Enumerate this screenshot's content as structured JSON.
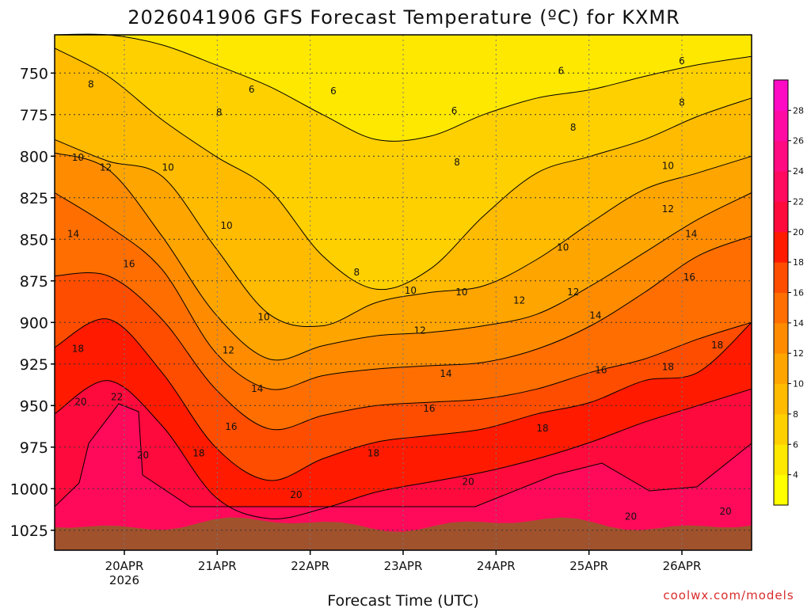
{
  "chart_data": {
    "type": "heatmap",
    "title": "2026041906 GFS Forecast Temperature (ºC) for KXMR",
    "xlabel": "Forecast Time (UTC)",
    "ylabel": "",
    "credit": "coolwx.com/models",
    "yaxis": {
      "reversed": true,
      "ylim": [
        1037,
        727
      ],
      "ticks": [
        750,
        775,
        800,
        825,
        850,
        875,
        900,
        925,
        950,
        975,
        1000,
        1025
      ]
    },
    "xaxis": {
      "ticks": [
        {
          "label": "20APR",
          "sub": "2026",
          "day": 0
        },
        {
          "label": "21APR",
          "sub": "",
          "day": 1
        },
        {
          "label": "22APR",
          "sub": "",
          "day": 2
        },
        {
          "label": "23APR",
          "sub": "",
          "day": 3
        },
        {
          "label": "24APR",
          "sub": "",
          "day": 4
        },
        {
          "label": "25APR",
          "sub": "",
          "day": 5
        },
        {
          "label": "26APR",
          "sub": "",
          "day": 6
        }
      ],
      "xlim": [
        -0.75,
        6.75
      ]
    },
    "colorbar": {
      "levels": [
        2,
        4,
        6,
        8,
        10,
        12,
        14,
        16,
        18,
        20,
        22,
        24,
        26,
        28,
        30
      ],
      "tick_labels": [
        "4",
        "6",
        "8",
        "10",
        "12",
        "14",
        "16",
        "18",
        "20",
        "22",
        "24",
        "26",
        "28"
      ],
      "colors": [
        "#ffff00",
        "#ffe800",
        "#ffd000",
        "#ffbb00",
        "#ffa500",
        "#ff8c00",
        "#ff6e00",
        "#ff4d00",
        "#ff1a00",
        "#ff0a3c",
        "#ff0a5e",
        "#ff0a80",
        "#ff0aa3",
        "#ff0ac4"
      ]
    },
    "ground_color": "#a0522d",
    "series": [
      {
        "name": "6C isotherm",
        "level": 6,
        "pressures": [
          727,
          727,
          733,
          745,
          758,
          775,
          790,
          788,
          775,
          765,
          760,
          752,
          745,
          740
        ]
      },
      {
        "name": "8C isotherm",
        "level": 8,
        "pressures": [
          735,
          752,
          778,
          800,
          820,
          860,
          880,
          868,
          836,
          810,
          800,
          790,
          776,
          765
        ]
      },
      {
        "name": "10C isotherm",
        "level": 10,
        "pressures": [
          790,
          803,
          812,
          855,
          895,
          902,
          888,
          882,
          878,
          862,
          840,
          820,
          810,
          800
        ]
      },
      {
        "name": "12C isotherm",
        "level": 12,
        "pressures": [
          798,
          808,
          848,
          895,
          922,
          914,
          908,
          906,
          902,
          895,
          878,
          858,
          838,
          822
        ]
      },
      {
        "name": "14C isotherm",
        "level": 14,
        "pressures": [
          822,
          842,
          868,
          918,
          940,
          932,
          928,
          926,
          924,
          916,
          902,
          882,
          860,
          848
        ]
      },
      {
        "name": "16C isotherm",
        "level": 16,
        "pressures": [
          872,
          872,
          898,
          940,
          964,
          956,
          950,
          948,
          946,
          940,
          930,
          922,
          910,
          900
        ]
      },
      {
        "name": "18C isotherm",
        "level": 18,
        "pressures": [
          915,
          898,
          930,
          975,
          995,
          982,
          972,
          968,
          964,
          955,
          948,
          935,
          930,
          900
        ]
      },
      {
        "name": "20C isotherm",
        "level": 20,
        "pressures": [
          955,
          935,
          962,
          1005,
          1018,
          1012,
          1002,
          996,
          990,
          982,
          972,
          960,
          950,
          940
        ]
      }
    ],
    "contour_labels": [
      {
        "text": "8",
        "day": -0.36,
        "p": 757
      },
      {
        "text": "6",
        "day": 1.37,
        "p": 760
      },
      {
        "text": "6",
        "day": 2.25,
        "p": 761
      },
      {
        "text": "6",
        "day": 3.55,
        "p": 773
      },
      {
        "text": "6",
        "day": 4.7,
        "p": 749
      },
      {
        "text": "6",
        "day": 6.0,
        "p": 743
      },
      {
        "text": "8",
        "day": 1.02,
        "p": 774
      },
      {
        "text": "8",
        "day": 4.83,
        "p": 783
      },
      {
        "text": "8",
        "day": 6.0,
        "p": 768
      },
      {
        "text": "8",
        "day": 3.58,
        "p": 804
      },
      {
        "text": "8",
        "day": 2.5,
        "p": 870
      },
      {
        "text": "10",
        "day": -0.5,
        "p": 801
      },
      {
        "text": "10",
        "day": 0.47,
        "p": 807
      },
      {
        "text": "10",
        "day": 1.1,
        "p": 842
      },
      {
        "text": "10",
        "day": 1.5,
        "p": 897
      },
      {
        "text": "10",
        "day": 3.08,
        "p": 881
      },
      {
        "text": "10",
        "day": 3.63,
        "p": 882
      },
      {
        "text": "10",
        "day": 4.72,
        "p": 855
      },
      {
        "text": "10",
        "day": 5.85,
        "p": 806
      },
      {
        "text": "12",
        "day": -0.2,
        "p": 807
      },
      {
        "text": "12",
        "day": 1.12,
        "p": 917
      },
      {
        "text": "12",
        "day": 3.18,
        "p": 905
      },
      {
        "text": "12",
        "day": 4.25,
        "p": 887
      },
      {
        "text": "12",
        "day": 4.83,
        "p": 882
      },
      {
        "text": "12",
        "day": 5.85,
        "p": 832
      },
      {
        "text": "14",
        "day": -0.55,
        "p": 847
      },
      {
        "text": "14",
        "day": 1.43,
        "p": 940
      },
      {
        "text": "14",
        "day": 3.46,
        "p": 931
      },
      {
        "text": "14",
        "day": 5.07,
        "p": 896
      },
      {
        "text": "14",
        "day": 6.1,
        "p": 847
      },
      {
        "text": "16",
        "day": 0.05,
        "p": 865
      },
      {
        "text": "16",
        "day": 1.15,
        "p": 963
      },
      {
        "text": "16",
        "day": 3.28,
        "p": 952
      },
      {
        "text": "16",
        "day": 5.13,
        "p": 929
      },
      {
        "text": "16",
        "day": 6.08,
        "p": 873
      },
      {
        "text": "18",
        "day": -0.5,
        "p": 916
      },
      {
        "text": "18",
        "day": 0.8,
        "p": 979
      },
      {
        "text": "18",
        "day": 2.68,
        "p": 979
      },
      {
        "text": "18",
        "day": 4.5,
        "p": 964
      },
      {
        "text": "18",
        "day": 5.85,
        "p": 927
      },
      {
        "text": "18",
        "day": 6.38,
        "p": 914
      },
      {
        "text": "20",
        "day": -0.47,
        "p": 948
      },
      {
        "text": "20",
        "day": 0.2,
        "p": 980
      },
      {
        "text": "20",
        "day": 1.85,
        "p": 1004
      },
      {
        "text": "20",
        "day": 3.7,
        "p": 996
      },
      {
        "text": "20",
        "day": 5.45,
        "p": 1017
      },
      {
        "text": "20",
        "day": 6.47,
        "p": 1014
      },
      {
        "text": "22",
        "day": -0.08,
        "p": 945
      }
    ]
  }
}
